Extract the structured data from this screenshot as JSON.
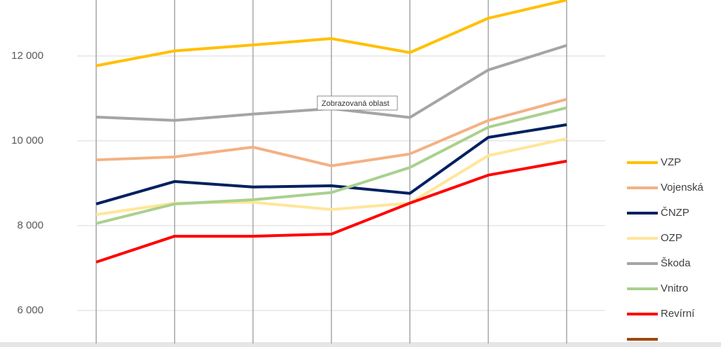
{
  "chart_data": {
    "type": "line",
    "annotations": [
      "Zobrazovaná oblast"
    ],
    "categories": [
      null,
      null,
      null,
      null,
      null,
      null,
      null
    ],
    "ylim": [
      5220,
      13320
    ],
    "yticks": [
      {
        "value": 6000,
        "label": "6 000"
      },
      {
        "value": 8000,
        "label": "8 000"
      },
      {
        "value": 10000,
        "label": "10 000"
      },
      {
        "value": 12000,
        "label": "12 000"
      }
    ],
    "grid": true,
    "legend": "right",
    "series": [
      {
        "name": "VZP",
        "color": "#ffc000",
        "values": [
          11770,
          12120,
          12260,
          12410,
          12080,
          12890,
          13320
        ]
      },
      {
        "name": "Vojenská",
        "color": "#f4b183",
        "values": [
          9550,
          9620,
          9850,
          9410,
          9690,
          10480,
          10980
        ]
      },
      {
        "name": "ČNZP",
        "color": "#002060",
        "values": [
          8510,
          9040,
          8910,
          8940,
          8760,
          10080,
          10380
        ]
      },
      {
        "name": "OZP",
        "color": "#ffe699",
        "values": [
          8260,
          8530,
          8550,
          8380,
          8530,
          9650,
          10050
        ]
      },
      {
        "name": "Škoda",
        "color": "#a5a5a5",
        "values": [
          10560,
          10480,
          10630,
          10760,
          10550,
          11670,
          12250
        ]
      },
      {
        "name": "Vnitro",
        "color": "#a9d18e",
        "values": [
          8050,
          8510,
          8610,
          8780,
          9370,
          10320,
          10780
        ]
      },
      {
        "name": "Revírní",
        "color": "#ff0000",
        "values": [
          7140,
          7750,
          7750,
          7800,
          8530,
          9190,
          9520
        ]
      },
      {
        "color": "#9e480e",
        "values": [
          null,
          null,
          null,
          null,
          null,
          null,
          null
        ]
      }
    ]
  }
}
